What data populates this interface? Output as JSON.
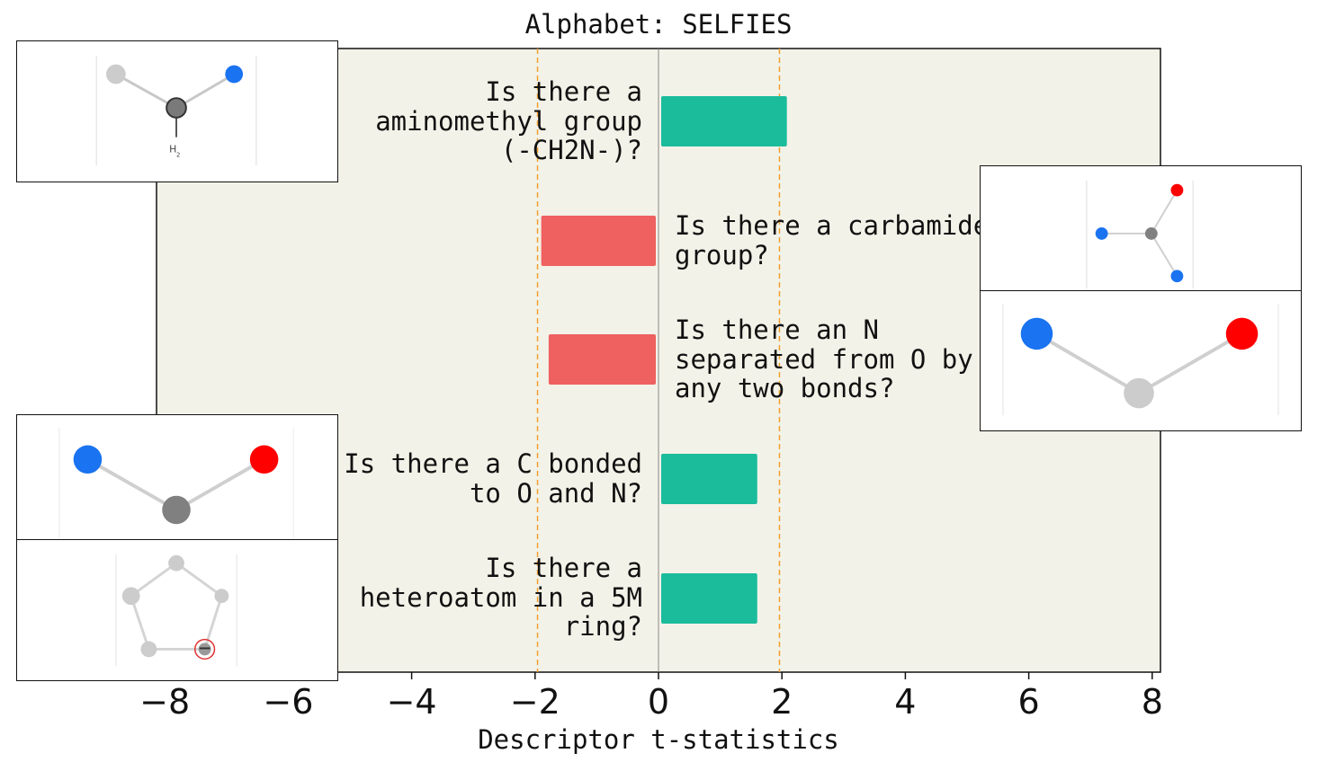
{
  "chart_data": {
    "type": "bar",
    "orientation": "horizontal",
    "title": "Alphabet: SELFIES",
    "xlabel": "Descriptor t-statistics",
    "xlim": [
      -8.3,
      8.3
    ],
    "xticks": [
      "−8",
      "−6",
      "−4",
      "−2",
      "0",
      "2",
      "4",
      "6",
      "8"
    ],
    "xtick_values": [
      -8,
      -6,
      -4,
      -2,
      0,
      2,
      4,
      6,
      8
    ],
    "significance_lines": [
      -1.96,
      1.96
    ],
    "categories": [
      "Is there a\naminomethyl group\n(-CH2N-)?",
      "Is there a carbamide\ngroup?",
      "Is there an N\nseparated from O by\nany two bonds?",
      "Is there a C bonded\nto O and N?",
      "Is there a\nheteroatom in a 5M\nring?"
    ],
    "values": [
      2.08,
      -1.9,
      -1.78,
      1.6,
      1.6
    ],
    "colors": {
      "positive": "#1abc9c",
      "negative": "#ef6060",
      "background": "#f3f2e8",
      "threshold": "#f0a030"
    }
  }
}
